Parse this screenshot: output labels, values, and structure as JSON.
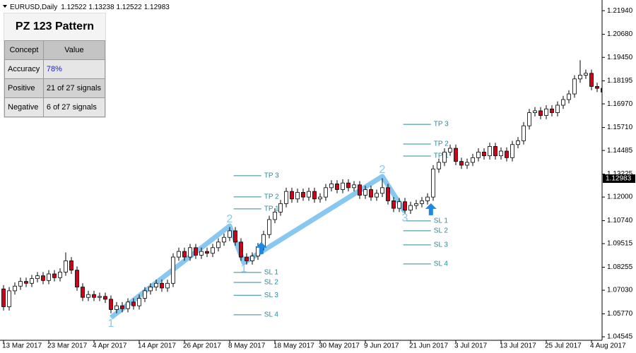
{
  "header": {
    "symbol": "EURUSD,Daily",
    "quote": [
      1.12522,
      1.13238,
      1.12522,
      1.12983
    ]
  },
  "panel": {
    "title": "PZ 123 Pattern",
    "columns": [
      "Concept",
      "Value"
    ],
    "rows": [
      [
        "Accuracy",
        "78%"
      ],
      [
        "Positive",
        "21 of 27 signals"
      ],
      [
        "Negative",
        "6 of 27 signals"
      ]
    ]
  },
  "chart_data": {
    "type": "candlestick",
    "categories": [
      "13 Mar 2017",
      null,
      null,
      null,
      null,
      null,
      null,
      null,
      "23 Mar 2017",
      null,
      null,
      null,
      null,
      null,
      null,
      null,
      "4 Apr 2017",
      null,
      null,
      null,
      null,
      null,
      null,
      null,
      "14 Apr 2017",
      null,
      null,
      null,
      null,
      null,
      null,
      null,
      "26 Apr 2017",
      null,
      null,
      null,
      null,
      null,
      null,
      null,
      "8 May 2017",
      null,
      null,
      null,
      null,
      null,
      null,
      null,
      "18 May 2017",
      null,
      null,
      null,
      null,
      null,
      null,
      null,
      "30 May 2017",
      null,
      null,
      null,
      null,
      null,
      null,
      null,
      "9 Jun 2017",
      null,
      null,
      null,
      null,
      null,
      null,
      null,
      "21 Jun 2017",
      null,
      null,
      null,
      null,
      null,
      null,
      null,
      "3 Jul 2017",
      null,
      null,
      null,
      null,
      null,
      null,
      null,
      "13 Jul 2017",
      null,
      null,
      null,
      null,
      null,
      null,
      null,
      "25 Jul 2017",
      null,
      null,
      null,
      null,
      null,
      null,
      null,
      "4 Aug 2017",
      null,
      null
    ],
    "open": [
      1.071,
      1.0615,
      1.07,
      1.0725,
      1.075,
      1.074,
      1.0765,
      1.078,
      1.0755,
      1.079,
      1.077,
      1.08,
      1.086,
      1.081,
      1.072,
      1.0665,
      1.068,
      1.0665,
      1.067,
      1.0655,
      1.06,
      1.062,
      1.0605,
      1.064,
      1.062,
      1.066,
      1.07,
      1.072,
      1.074,
      1.0715,
      1.074,
      1.088,
      1.091,
      1.088,
      1.093,
      1.089,
      1.091,
      1.09,
      1.093,
      1.096,
      1.0985,
      1.102,
      1.096,
      1.088,
      1.086,
      1.0885,
      1.0935,
      1.1,
      1.108,
      1.112,
      1.1165,
      1.123,
      1.119,
      1.1225,
      1.12,
      1.123,
      1.119,
      1.12,
      1.125,
      1.127,
      1.124,
      1.1275,
      1.125,
      1.1265,
      1.121,
      1.124,
      1.12,
      1.122,
      1.125,
      1.118,
      1.114,
      1.1175,
      1.113,
      1.1155,
      1.1165,
      1.118,
      1.12,
      1.135,
      1.1385,
      1.144,
      1.146,
      1.139,
      1.137,
      1.1385,
      1.141,
      1.144,
      1.142,
      1.147,
      1.142,
      1.1445,
      1.141,
      1.148,
      1.15,
      1.158,
      1.165,
      1.166,
      1.1635,
      1.167,
      1.165,
      1.169,
      1.172,
      1.175,
      1.183,
      1.185,
      1.186,
      1.179,
      1.178
    ],
    "high": [
      1.073,
      1.072,
      1.0745,
      1.077,
      1.077,
      1.0785,
      1.08,
      1.08,
      1.081,
      1.081,
      1.082,
      1.0905,
      1.088,
      1.083,
      1.074,
      1.07,
      1.07,
      1.069,
      1.069,
      1.0675,
      1.064,
      1.064,
      1.066,
      1.066,
      1.068,
      1.072,
      1.074,
      1.076,
      1.076,
      1.076,
      1.09,
      1.093,
      1.093,
      1.095,
      1.095,
      1.093,
      1.093,
      1.095,
      1.098,
      1.1005,
      1.104,
      1.104,
      1.098,
      1.09,
      1.0905,
      1.0955,
      1.102,
      1.11,
      1.114,
      1.1185,
      1.125,
      1.125,
      1.1245,
      1.1245,
      1.125,
      1.125,
      1.122,
      1.127,
      1.129,
      1.129,
      1.1295,
      1.1295,
      1.1285,
      1.1285,
      1.126,
      1.126,
      1.124,
      1.13,
      1.127,
      1.12,
      1.1195,
      1.1195,
      1.1175,
      1.1185,
      1.12,
      1.122,
      1.137,
      1.1405,
      1.146,
      1.148,
      1.148,
      1.141,
      1.1405,
      1.143,
      1.146,
      1.146,
      1.149,
      1.149,
      1.1465,
      1.1465,
      1.15,
      1.152,
      1.16,
      1.167,
      1.168,
      1.168,
      1.169,
      1.169,
      1.171,
      1.174,
      1.177,
      1.185,
      1.193,
      1.188,
      1.188,
      1.181,
      1.18
    ],
    "low": [
      1.0595,
      1.0595,
      1.068,
      1.0705,
      1.072,
      1.072,
      1.0745,
      1.0735,
      1.0735,
      1.075,
      1.075,
      1.078,
      1.079,
      1.07,
      1.0645,
      1.0645,
      1.0645,
      1.0645,
      1.0635,
      1.058,
      1.058,
      1.0585,
      1.0585,
      1.06,
      1.06,
      1.064,
      1.068,
      1.07,
      1.0695,
      1.0695,
      1.072,
      1.086,
      1.086,
      1.086,
      1.087,
      1.087,
      1.088,
      1.088,
      1.091,
      1.094,
      1.0965,
      1.094,
      1.086,
      1.084,
      1.084,
      1.0865,
      1.0915,
      1.098,
      1.106,
      1.11,
      1.1145,
      1.117,
      1.117,
      1.118,
      1.118,
      1.117,
      1.117,
      1.118,
      1.123,
      1.122,
      1.122,
      1.123,
      1.123,
      1.119,
      1.119,
      1.118,
      1.118,
      1.12,
      1.116,
      1.112,
      1.112,
      1.111,
      1.111,
      1.1135,
      1.1145,
      1.116,
      1.118,
      1.133,
      1.1365,
      1.142,
      1.137,
      1.135,
      1.135,
      1.1365,
      1.139,
      1.14,
      1.14,
      1.14,
      1.14,
      1.139,
      1.139,
      1.146,
      1.148,
      1.156,
      1.163,
      1.1615,
      1.1615,
      1.163,
      1.163,
      1.167,
      1.17,
      1.173,
      1.181,
      1.183,
      1.177,
      1.176,
      1.174
    ],
    "close": [
      1.0615,
      1.07,
      1.0725,
      1.075,
      1.074,
      1.0765,
      1.078,
      1.0755,
      1.079,
      1.077,
      1.08,
      1.086,
      1.081,
      1.072,
      1.0665,
      1.068,
      1.0665,
      1.067,
      1.0655,
      1.06,
      1.062,
      1.0605,
      1.064,
      1.062,
      1.066,
      1.07,
      1.072,
      1.074,
      1.0715,
      1.074,
      1.088,
      1.091,
      1.088,
      1.093,
      1.089,
      1.091,
      1.09,
      1.093,
      1.096,
      1.0985,
      1.102,
      1.096,
      1.088,
      1.086,
      1.0885,
      1.0935,
      1.1,
      1.108,
      1.112,
      1.1165,
      1.123,
      1.119,
      1.1225,
      1.12,
      1.123,
      1.119,
      1.12,
      1.125,
      1.127,
      1.124,
      1.1275,
      1.125,
      1.1265,
      1.121,
      1.124,
      1.12,
      1.122,
      1.125,
      1.118,
      1.114,
      1.1175,
      1.113,
      1.1155,
      1.1165,
      1.118,
      1.12,
      1.135,
      1.1385,
      1.144,
      1.146,
      1.139,
      1.137,
      1.1385,
      1.141,
      1.144,
      1.142,
      1.147,
      1.142,
      1.1445,
      1.141,
      1.148,
      1.15,
      1.158,
      1.165,
      1.166,
      1.1635,
      1.167,
      1.165,
      1.169,
      1.172,
      1.175,
      1.183,
      1.185,
      1.186,
      1.179,
      1.178,
      1.176
    ],
    "up_color": "#ffffff",
    "down_color": "#d0021b",
    "ylim": [
      1.0436,
      1.2251
    ],
    "yticks": [
      {
        "value": 1.2194,
        "label": "1.21940"
      },
      {
        "value": 1.2068,
        "label": "1.20680"
      },
      {
        "value": 1.1945,
        "label": "1.19450"
      },
      1.18195,
      {
        "value": 1.1697,
        "label": "1.16970"
      },
      {
        "value": 1.1571,
        "label": "1.15710"
      },
      1.14485,
      1.13225,
      {
        "value": 1.12,
        "label": "1.12000"
      },
      {
        "value": 1.1074,
        "label": "1.10740"
      },
      1.09515,
      1.08255,
      {
        "value": 1.0703,
        "label": "1.07030"
      },
      {
        "value": 1.0577,
        "label": "1.05770"
      },
      1.04545
    ],
    "last_price": 1.12983,
    "zigzag": {
      "color": "#87c7f0",
      "x": [
        19,
        40,
        42.5,
        67,
        71
      ],
      "y": [
        1.0557,
        1.1046,
        1.085,
        1.131,
        1.1121
      ],
      "labels": [
        "1",
        "2",
        "1",
        "2",
        "3"
      ]
    },
    "signals": [
      {
        "x": 45.6,
        "y": 1.0926,
        "color": "#1e88e5",
        "levels": [
          {
            "label": "TP 3",
            "value": 1.1314
          },
          {
            "label": "TP 2",
            "value": 1.1201
          },
          {
            "label": "TP 1",
            "value": 1.1137
          },
          {
            "label": "SL 1",
            "value": 1.0798
          },
          {
            "label": "SL 2",
            "value": 1.0745
          },
          {
            "label": "SL 3",
            "value": 1.0676
          },
          {
            "label": "SL 4",
            "value": 1.0572
          }
        ]
      },
      {
        "x": 75.6,
        "y": 1.1133,
        "color": "#1e88e5",
        "levels": [
          {
            "label": "TP 3",
            "value": 1.1588
          },
          {
            "label": "TP 2",
            "value": 1.1483
          },
          {
            "label": "TP 1",
            "value": 1.1419
          },
          {
            "label": "SL 1",
            "value": 1.1073
          },
          {
            "label": "SL 2",
            "value": 1.102
          },
          {
            "label": "SL 3",
            "value": 1.0945
          },
          {
            "label": "SL 4",
            "value": 1.0843
          }
        ]
      }
    ],
    "level_color": "#2a8a9c"
  }
}
